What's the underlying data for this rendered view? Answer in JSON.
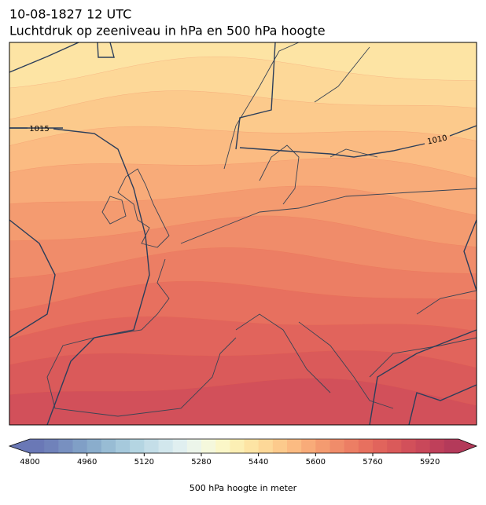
{
  "title": "10-08-1827 12 UTC",
  "subtitle": "Luchtdruk op zeeniveau in hPa en 500 hPa hoogte",
  "isobar_labels": [
    "1015",
    "1010"
  ],
  "map_levels": [
    5400,
    5440,
    5480,
    5520,
    5560,
    5600,
    5640,
    5680,
    5720,
    5760,
    5800,
    5840
  ],
  "colorbar": {
    "label": "500 hPa hoogte in meter",
    "lim": [
      4800,
      6000
    ],
    "step": 40,
    "ticks": [
      4800,
      4960,
      5120,
      5280,
      5440,
      5600,
      5760,
      5920
    ],
    "colors": [
      "#6a78b6",
      "#7082ba",
      "#7890c0",
      "#809fc6",
      "#8aadcc",
      "#98bcd4",
      "#a6c9dc",
      "#b4d5e2",
      "#c4dee8",
      "#d2e7ed",
      "#e0eff0",
      "#ecf5ea",
      "#f5f8dc",
      "#fbf7c8",
      "#fcefb4",
      "#fde4a4",
      "#fdd898",
      "#fcca8c",
      "#fbbb82",
      "#f8ab79",
      "#f49b70",
      "#f08c6a",
      "#ec7e64",
      "#e7705f",
      "#e1645c",
      "#da5a5a",
      "#d2505a",
      "#c9485a",
      "#bf405a",
      "#b43a5a"
    ]
  }
}
